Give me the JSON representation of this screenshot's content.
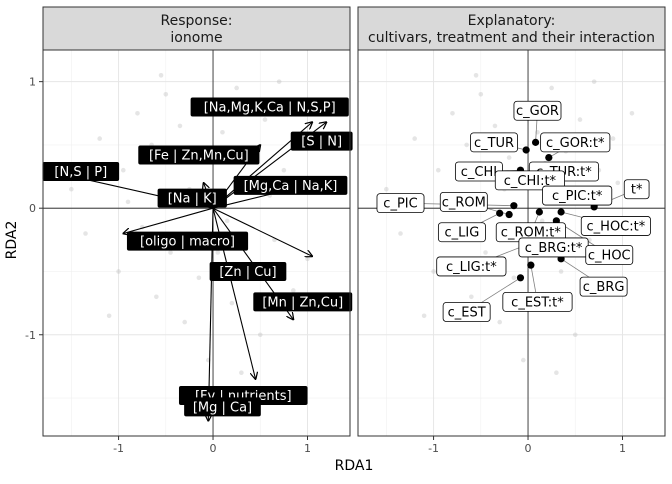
{
  "chart_data": [
    {
      "type": "scatter",
      "strip_title": [
        "Response:",
        "ionome"
      ],
      "xlim": [
        -1.8,
        1.45
      ],
      "ylim": [
        -1.8,
        1.25
      ],
      "x_ticks": [
        -1,
        0,
        1
      ],
      "x_tick_labels": [
        "-1",
        "0",
        "1"
      ],
      "y_ticks": [
        -1,
        0,
        1
      ],
      "y_tick_labels": [
        "-1",
        "0",
        "1"
      ],
      "background_points": [
        [
          -1.2,
          0.55
        ],
        [
          -0.95,
          0.3
        ],
        [
          -0.8,
          0.75
        ],
        [
          -0.65,
          0.5
        ],
        [
          -0.5,
          0.9
        ],
        [
          -0.35,
          0.65
        ],
        [
          -0.2,
          0.4
        ],
        [
          -0.1,
          0.8
        ],
        [
          0.1,
          0.6
        ],
        [
          0.25,
          0.95
        ],
        [
          0.4,
          0.45
        ],
        [
          0.55,
          0.7
        ],
        [
          0.75,
          0.3
        ],
        [
          0.9,
          0.55
        ],
        [
          -1.35,
          -0.2
        ],
        [
          -1.0,
          -0.5
        ],
        [
          -0.75,
          -0.15
        ],
        [
          -0.6,
          -0.7
        ],
        [
          -0.45,
          -0.35
        ],
        [
          -0.3,
          -0.9
        ],
        [
          -0.15,
          -0.55
        ],
        [
          0.05,
          -0.35
        ],
        [
          0.2,
          -0.75
        ],
        [
          0.35,
          -0.5
        ],
        [
          0.5,
          -1.0
        ],
        [
          0.65,
          -0.25
        ],
        [
          0.85,
          -0.65
        ],
        [
          1.0,
          -0.4
        ],
        [
          -1.5,
          0.15
        ],
        [
          -0.9,
          0.05
        ],
        [
          0.6,
          0.1
        ],
        [
          0.95,
          0.2
        ],
        [
          -0.25,
          0.15
        ],
        [
          0.15,
          -0.1
        ],
        [
          -0.05,
          -1.2
        ],
        [
          0.3,
          -1.3
        ],
        [
          -0.55,
          1.05
        ],
        [
          0.7,
          1.0
        ],
        [
          1.1,
          0.75
        ],
        [
          -1.1,
          -0.85
        ]
      ],
      "arrows": [
        {
          "label": "[Na,Mg,K,Ca | N,S,P]",
          "x": 1.05,
          "y": 0.68,
          "label_x": 0.6,
          "label_y": 0.8
        },
        {
          "label": "[S | N]",
          "x": 1.2,
          "y": 0.68,
          "label_x": 1.15,
          "label_y": 0.53
        },
        {
          "label": "[Fe | Zn,Mn,Cu]",
          "x": 0.5,
          "y": 0.5,
          "label_x": -0.15,
          "label_y": 0.42
        },
        {
          "label": "[N,S | P]",
          "x": -1.6,
          "y": 0.27,
          "label_x": -1.4,
          "label_y": 0.29
        },
        {
          "label": "[Mg,Ca | Na,K]",
          "x": 1.1,
          "y": 0.2,
          "label_x": 0.82,
          "label_y": 0.18
        },
        {
          "label": "[Na | K]",
          "x": -0.1,
          "y": 0.2,
          "label_x": -0.22,
          "label_y": 0.08
        },
        {
          "label": "[oligo | macro]",
          "x": -0.95,
          "y": -0.2,
          "label_x": -0.27,
          "label_y": -0.26
        },
        {
          "label": "[Zn | Cu]",
          "x": 1.05,
          "y": -0.38,
          "label_x": 0.37,
          "label_y": -0.5
        },
        {
          "label": "[Mn | Zn,Cu]",
          "x": 0.85,
          "y": -0.88,
          "label_x": 0.95,
          "label_y": -0.74
        },
        {
          "label": "[Fv | nutrients]",
          "x": 0.45,
          "y": -1.35,
          "label_x": 0.32,
          "label_y": -1.48
        },
        {
          "label": "[Mg | Ca]",
          "x": -0.05,
          "y": -1.68,
          "label_x": 0.1,
          "label_y": -1.57
        }
      ]
    },
    {
      "type": "scatter",
      "strip_title": [
        "Explanatory:",
        "cultivars, treatment and their interaction"
      ],
      "xlim": [
        -1.8,
        1.45
      ],
      "ylim": [
        -1.8,
        1.25
      ],
      "x_ticks": [
        -1,
        0,
        1
      ],
      "x_tick_labels": [
        "-1",
        "0",
        "1"
      ],
      "y_ticks": [
        -1,
        0,
        1
      ],
      "y_tick_labels": [
        "-1",
        "0",
        "1"
      ],
      "background_points": [
        [
          -1.2,
          0.55
        ],
        [
          -0.95,
          0.3
        ],
        [
          -0.8,
          0.75
        ],
        [
          -0.65,
          0.5
        ],
        [
          -0.5,
          0.9
        ],
        [
          -0.35,
          0.65
        ],
        [
          -0.2,
          0.4
        ],
        [
          -0.1,
          0.8
        ],
        [
          0.1,
          0.6
        ],
        [
          0.25,
          0.95
        ],
        [
          0.4,
          0.45
        ],
        [
          0.55,
          0.7
        ],
        [
          0.75,
          0.3
        ],
        [
          0.9,
          0.55
        ],
        [
          -1.35,
          -0.2
        ],
        [
          -1.0,
          -0.5
        ],
        [
          -0.75,
          -0.15
        ],
        [
          -0.6,
          -0.7
        ],
        [
          -0.45,
          -0.35
        ],
        [
          -0.3,
          -0.9
        ],
        [
          -0.15,
          -0.55
        ],
        [
          0.05,
          -0.35
        ],
        [
          0.2,
          -0.75
        ],
        [
          0.35,
          -0.5
        ],
        [
          0.5,
          -1.0
        ],
        [
          0.65,
          -0.25
        ],
        [
          0.85,
          -0.65
        ],
        [
          1.0,
          -0.4
        ],
        [
          -1.5,
          0.15
        ],
        [
          -0.9,
          0.05
        ],
        [
          0.6,
          0.1
        ],
        [
          0.95,
          0.2
        ],
        [
          -0.25,
          0.15
        ],
        [
          0.15,
          -0.1
        ],
        [
          -0.05,
          -1.2
        ],
        [
          0.3,
          -1.3
        ],
        [
          -0.55,
          1.05
        ],
        [
          0.7,
          1.0
        ],
        [
          1.1,
          0.75
        ],
        [
          -1.1,
          -0.85
        ]
      ],
      "points": [
        {
          "label": "c_GOR",
          "x": 0.08,
          "y": 0.52,
          "label_x": 0.1,
          "label_y": 0.77
        },
        {
          "label": "c_GOR:t*",
          "x": 0.22,
          "y": 0.4,
          "label_x": 0.5,
          "label_y": 0.52
        },
        {
          "label": "c_TUR",
          "x": -0.02,
          "y": 0.46,
          "label_x": -0.36,
          "label_y": 0.52
        },
        {
          "label": "c_TUR:t*",
          "x": 0.18,
          "y": 0.34,
          "label_x": 0.38,
          "label_y": 0.29
        },
        {
          "label": "c_CHI",
          "x": -0.08,
          "y": 0.3,
          "label_x": -0.52,
          "label_y": 0.29
        },
        {
          "label": "c_CHI:t*",
          "x": 0.12,
          "y": 0.18,
          "label_x": 0.02,
          "label_y": 0.22
        },
        {
          "label": "t*",
          "x": 0.7,
          "y": 0.01,
          "label_x": 1.15,
          "label_y": 0.15
        },
        {
          "label": "c_PIC:t*",
          "x": 0.25,
          "y": 0.1,
          "label_x": 0.52,
          "label_y": 0.1
        },
        {
          "label": "c_PIC",
          "x": -0.15,
          "y": 0.02,
          "label_x": -1.35,
          "label_y": 0.04
        },
        {
          "label": "c_ROM",
          "x": -0.2,
          "y": -0.05,
          "label_x": -0.68,
          "label_y": 0.05
        },
        {
          "label": "c_HOC:t*",
          "x": 0.35,
          "y": -0.03,
          "label_x": 0.93,
          "label_y": -0.14
        },
        {
          "label": "c_LIG",
          "x": -0.3,
          "y": -0.04,
          "label_x": -0.7,
          "label_y": -0.19
        },
        {
          "label": "c_ROM:t*",
          "x": 0.12,
          "y": -0.03,
          "label_x": 0.03,
          "label_y": -0.19
        },
        {
          "label": "c_BRG:t*",
          "x": 0.27,
          "y": -0.15,
          "label_x": 0.27,
          "label_y": -0.31
        },
        {
          "label": "c_HOC",
          "x": 0.3,
          "y": -0.1,
          "label_x": 0.86,
          "label_y": -0.37
        },
        {
          "label": "c_LIG:t*",
          "x": -0.05,
          "y": -0.3,
          "label_x": -0.6,
          "label_y": -0.46
        },
        {
          "label": "c_BRG",
          "x": 0.35,
          "y": -0.4,
          "label_x": 0.8,
          "label_y": -0.62
        },
        {
          "label": "c_EST:t*",
          "x": 0.03,
          "y": -0.45,
          "label_x": 0.1,
          "label_y": -0.74
        },
        {
          "label": "c_EST",
          "x": -0.08,
          "y": -0.55,
          "label_x": -0.65,
          "label_y": -0.82
        }
      ]
    }
  ],
  "axis_title_x": "RDA1",
  "axis_title_y": "RDA2"
}
